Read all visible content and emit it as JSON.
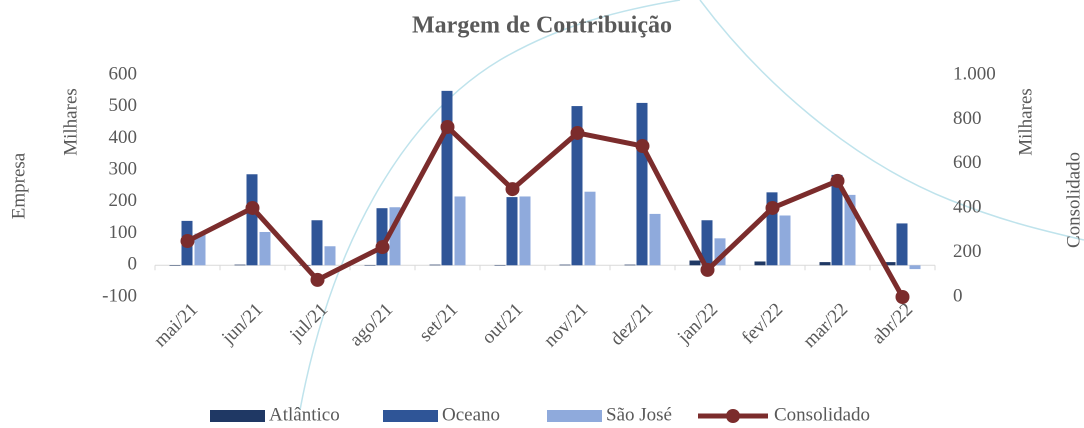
{
  "chart_data": {
    "type": "bar",
    "title": "Margem de Contribuição",
    "y_axis_label": "Empresa",
    "y_axis_unit": "Milhares",
    "y2_axis_label": "Consolidado",
    "y2_axis_unit": "Milhares",
    "categories": [
      "mai/21",
      "jun/21",
      "jul/21",
      "ago/21",
      "set/21",
      "out/21",
      "nov/21",
      "dez/21",
      "jan/22",
      "fev/22",
      "mar/22",
      "abr/22"
    ],
    "series": [
      {
        "name": "Atlântico",
        "color": "#1f3864",
        "type": "bar",
        "values": [
          0,
          2,
          1,
          1,
          2,
          1,
          2,
          2,
          15,
          12,
          10,
          10
        ]
      },
      {
        "name": "Oceano",
        "color": "#2f5597",
        "type": "bar",
        "values": [
          140,
          287,
          142,
          180,
          550,
          215,
          502,
          512,
          142,
          230,
          285,
          132
        ]
      },
      {
        "name": "São  José",
        "color": "#8faadc",
        "type": "bar",
        "values": [
          100,
          105,
          60,
          183,
          217,
          217,
          232,
          162,
          85,
          157,
          222,
          -12
        ]
      },
      {
        "name": "Consolidado",
        "color": "#7b2c2c",
        "type": "line",
        "axis": "y2",
        "values": [
          252,
          401,
          77,
          225,
          766,
          486,
          739,
          680,
          122,
          401,
          523,
          0
        ]
      }
    ],
    "ylim": [
      -100,
      600
    ],
    "yticks": [
      -100,
      0,
      100,
      200,
      300,
      400,
      500,
      600
    ],
    "y2lim": [
      0,
      1000
    ],
    "y2ticks": [
      0,
      200,
      400,
      600,
      800,
      {
        "value": 1000,
        "label": "1.000"
      }
    ],
    "grid": false,
    "legend": "bottom"
  }
}
